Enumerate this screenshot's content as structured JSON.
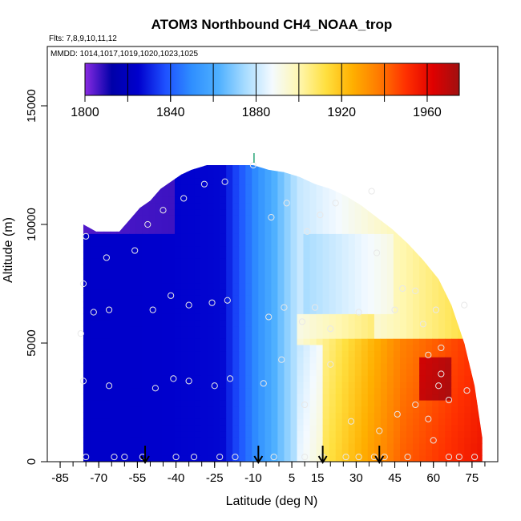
{
  "chart_data": {
    "type": "heatmap",
    "title": "ATOM3 Northbound CH4_NOAA_trop",
    "subtitle_flights": "Flts: 7,8,9,10,11,12",
    "subtitle_dates": "MMDD: 1014,1017,1019,1020,1023,1025",
    "xlabel": "Latitude (deg N)",
    "ylabel": "Altitude (m)",
    "xlim": [
      -90,
      85
    ],
    "ylim": [
      0,
      17500
    ],
    "x_ticks": [
      "-85",
      "-70",
      "-55",
      "-40",
      "-25",
      "-10",
      "5",
      "15",
      "30",
      "45",
      "60",
      "75"
    ],
    "x_tick_values": [
      -85,
      -70,
      -55,
      -40,
      -25,
      -10,
      5,
      15,
      30,
      45,
      60,
      75
    ],
    "y_ticks": [
      "0",
      "5000",
      "10000",
      "15000"
    ],
    "y_tick_values": [
      0,
      5000,
      10000,
      15000
    ],
    "colorbar": {
      "min": 1800,
      "max": 1975,
      "labels": [
        "1800",
        "1840",
        "1880",
        "1920",
        "1960"
      ],
      "label_values": [
        1800,
        1840,
        1880,
        1920,
        1960
      ],
      "colors": [
        "#8a2be2",
        "#0000a8",
        "#0000cd",
        "#1e50ff",
        "#2f8fff",
        "#4fb0ff",
        "#a8dcff",
        "#f4faff",
        "#fff7b0",
        "#ffe040",
        "#ffb000",
        "#ff7a00",
        "#ff3000",
        "#e00000",
        "#a01010"
      ]
    },
    "envelope": {
      "lat": [
        -76,
        -71,
        -67,
        -62,
        -58,
        -54,
        -50,
        -46,
        -42,
        -38,
        -34,
        -28,
        -22,
        -16,
        -10,
        -4,
        2,
        8,
        14,
        20,
        26,
        32,
        38,
        44,
        50,
        56,
        62,
        67,
        72,
        76,
        79
      ],
      "top_alt": [
        10000,
        9700,
        9700,
        9700,
        10200,
        10700,
        11000,
        11500,
        11800,
        12100,
        12300,
        12500,
        12500,
        12500,
        12500,
        12300,
        12200,
        12000,
        11700,
        11500,
        11200,
        10800,
        10300,
        9800,
        9200,
        8500,
        7700,
        6600,
        5000,
        3200,
        1000
      ]
    },
    "sample_points": [
      [
        -77,
        5400
      ],
      [
        -76,
        7500
      ],
      [
        -75,
        9500
      ],
      [
        -76,
        3400
      ],
      [
        -75,
        200
      ],
      [
        -72,
        6300
      ],
      [
        -67,
        8600
      ],
      [
        -66,
        6400
      ],
      [
        -66,
        3200
      ],
      [
        -64,
        200
      ],
      [
        -60,
        200
      ],
      [
        -56,
        8900
      ],
      [
        -53,
        200
      ],
      [
        -51,
        10000
      ],
      [
        -49,
        6400
      ],
      [
        -48,
        3100
      ],
      [
        -45,
        10600
      ],
      [
        -42,
        7000
      ],
      [
        -41,
        3500
      ],
      [
        -40,
        200
      ],
      [
        -37,
        11100
      ],
      [
        -35,
        6600
      ],
      [
        -35,
        3400
      ],
      [
        -33,
        200
      ],
      [
        -29,
        11700
      ],
      [
        -26,
        6700
      ],
      [
        -25,
        3200
      ],
      [
        -23,
        200
      ],
      [
        -21,
        11800
      ],
      [
        -20,
        6800
      ],
      [
        -19,
        3500
      ],
      [
        -17,
        200
      ],
      [
        -10,
        12500
      ],
      [
        -6,
        3300
      ],
      [
        -4,
        6100
      ],
      [
        -3,
        10300
      ],
      [
        -2,
        200
      ],
      [
        1,
        4300
      ],
      [
        2,
        6500
      ],
      [
        3,
        10900
      ],
      [
        9,
        5900
      ],
      [
        10,
        2400
      ],
      [
        10,
        200
      ],
      [
        11,
        9700
      ],
      [
        14,
        6500
      ],
      [
        16,
        10400
      ],
      [
        17,
        200
      ],
      [
        20,
        5600
      ],
      [
        20,
        4100
      ],
      [
        22,
        10900
      ],
      [
        26,
        200
      ],
      [
        28,
        1700
      ],
      [
        31,
        200
      ],
      [
        31,
        6300
      ],
      [
        36,
        11400
      ],
      [
        37,
        200
      ],
      [
        38,
        8800
      ],
      [
        39,
        1300
      ],
      [
        41,
        200
      ],
      [
        45,
        6400
      ],
      [
        46,
        2000
      ],
      [
        48,
        7300
      ],
      [
        50,
        200
      ],
      [
        53,
        7200
      ],
      [
        53,
        2400
      ],
      [
        56,
        5800
      ],
      [
        58,
        4500
      ],
      [
        58,
        1800
      ],
      [
        60,
        900
      ],
      [
        61,
        6400
      ],
      [
        62,
        3200
      ],
      [
        63,
        4800
      ],
      [
        63,
        3700
      ],
      [
        66,
        200
      ],
      [
        66,
        2600
      ],
      [
        70,
        200
      ],
      [
        72,
        6600
      ],
      [
        73,
        3000
      ],
      [
        76,
        200
      ]
    ],
    "arrows_lat": [
      -52,
      -8,
      17,
      39
    ],
    "caret_lat": -10,
    "caret_alt": 12600
  }
}
